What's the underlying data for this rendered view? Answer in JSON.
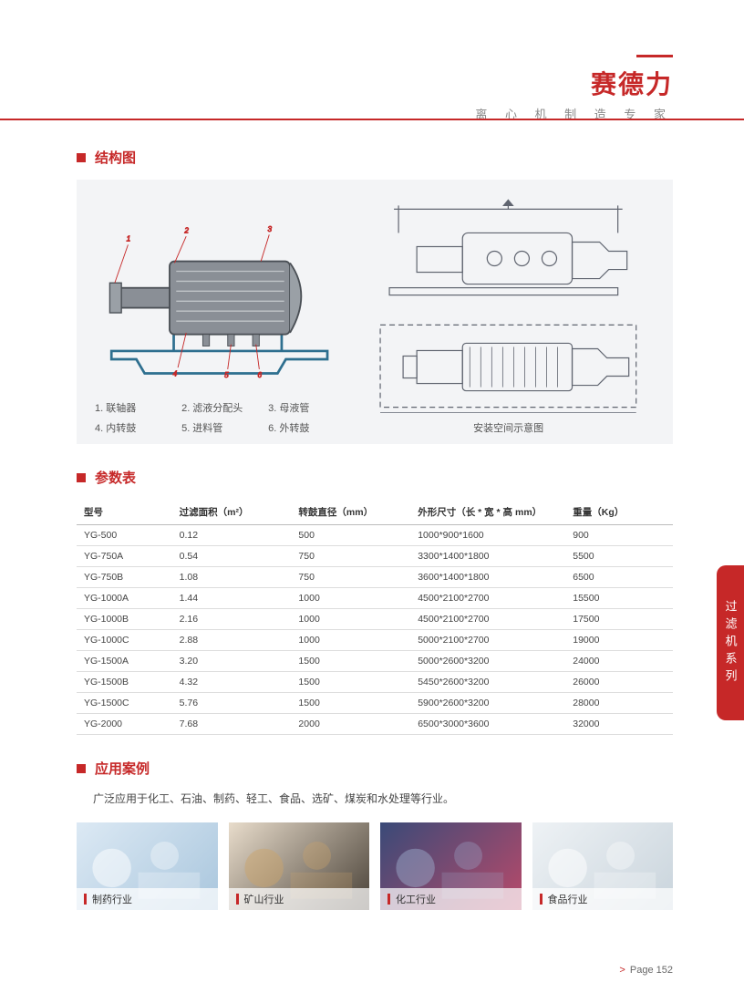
{
  "brand": {
    "name": "赛德力",
    "subtitle": "离 心 机 制 造 专 家"
  },
  "sections": {
    "structure_title": "结构图",
    "params_title": "参数表",
    "apps_title": "应用案例"
  },
  "structure": {
    "legend": [
      "1. 联轴器",
      "2. 滤液分配头",
      "3. 母液管",
      "4. 内转鼓",
      "5. 进料管",
      "6. 外转鼓"
    ],
    "right_caption": "安装空间示意图",
    "diagram_colors": {
      "body_fill": "#8a8f96",
      "body_stroke": "#4a4f55",
      "internal_line": "#c0c4c8",
      "base_frame": "#2e6f8f",
      "callout": "#c62828",
      "line_drawing": "#606570"
    }
  },
  "params_table": {
    "columns": [
      "型号",
      "过滤面积（m²）",
      "转鼓直径（mm）",
      "外形尺寸（长 * 宽 * 高 mm）",
      "重量（Kg）"
    ],
    "rows": [
      [
        "YG-500",
        "0.12",
        "500",
        "1000*900*1600",
        "900"
      ],
      [
        "YG-750A",
        "0.54",
        "750",
        "3300*1400*1800",
        "5500"
      ],
      [
        "YG-750B",
        "1.08",
        "750",
        "3600*1400*1800",
        "6500"
      ],
      [
        "YG-1000A",
        "1.44",
        "1000",
        "4500*2100*2700",
        "15500"
      ],
      [
        "YG-1000B",
        "2.16",
        "1000",
        "4500*2100*2700",
        "17500"
      ],
      [
        "YG-1000C",
        "2.88",
        "1000",
        "5000*2100*2700",
        "19000"
      ],
      [
        "YG-1500A",
        "3.20",
        "1500",
        "5000*2600*3200",
        "24000"
      ],
      [
        "YG-1500B",
        "4.32",
        "1500",
        "5450*2600*3200",
        "26000"
      ],
      [
        "YG-1500C",
        "5.76",
        "1500",
        "5900*2600*3200",
        "28000"
      ],
      [
        "YG-2000",
        "7.68",
        "2000",
        "6500*3000*3600",
        "32000"
      ]
    ]
  },
  "apps": {
    "text": "广泛应用于化工、石油、制药、轻工、食品、选矿、煤炭和水处理等行业。",
    "cards": [
      {
        "label": "制药行业",
        "bg1": "#dce9f4",
        "bg2": "#a9c6dd",
        "accent": "#ffffff"
      },
      {
        "label": "矿山行业",
        "bg1": "#e8dccb",
        "bg2": "#4a4238",
        "accent": "#caa46b"
      },
      {
        "label": "化工行业",
        "bg1": "#3a4a78",
        "bg2": "#b84a6a",
        "accent": "#9aa7c8"
      },
      {
        "label": "食品行业",
        "bg1": "#eef2f5",
        "bg2": "#c9d4dc",
        "accent": "#ffffff"
      }
    ]
  },
  "side_tab": "过滤机系列",
  "footer": {
    "prefix": ">",
    "label": "Page 152"
  }
}
